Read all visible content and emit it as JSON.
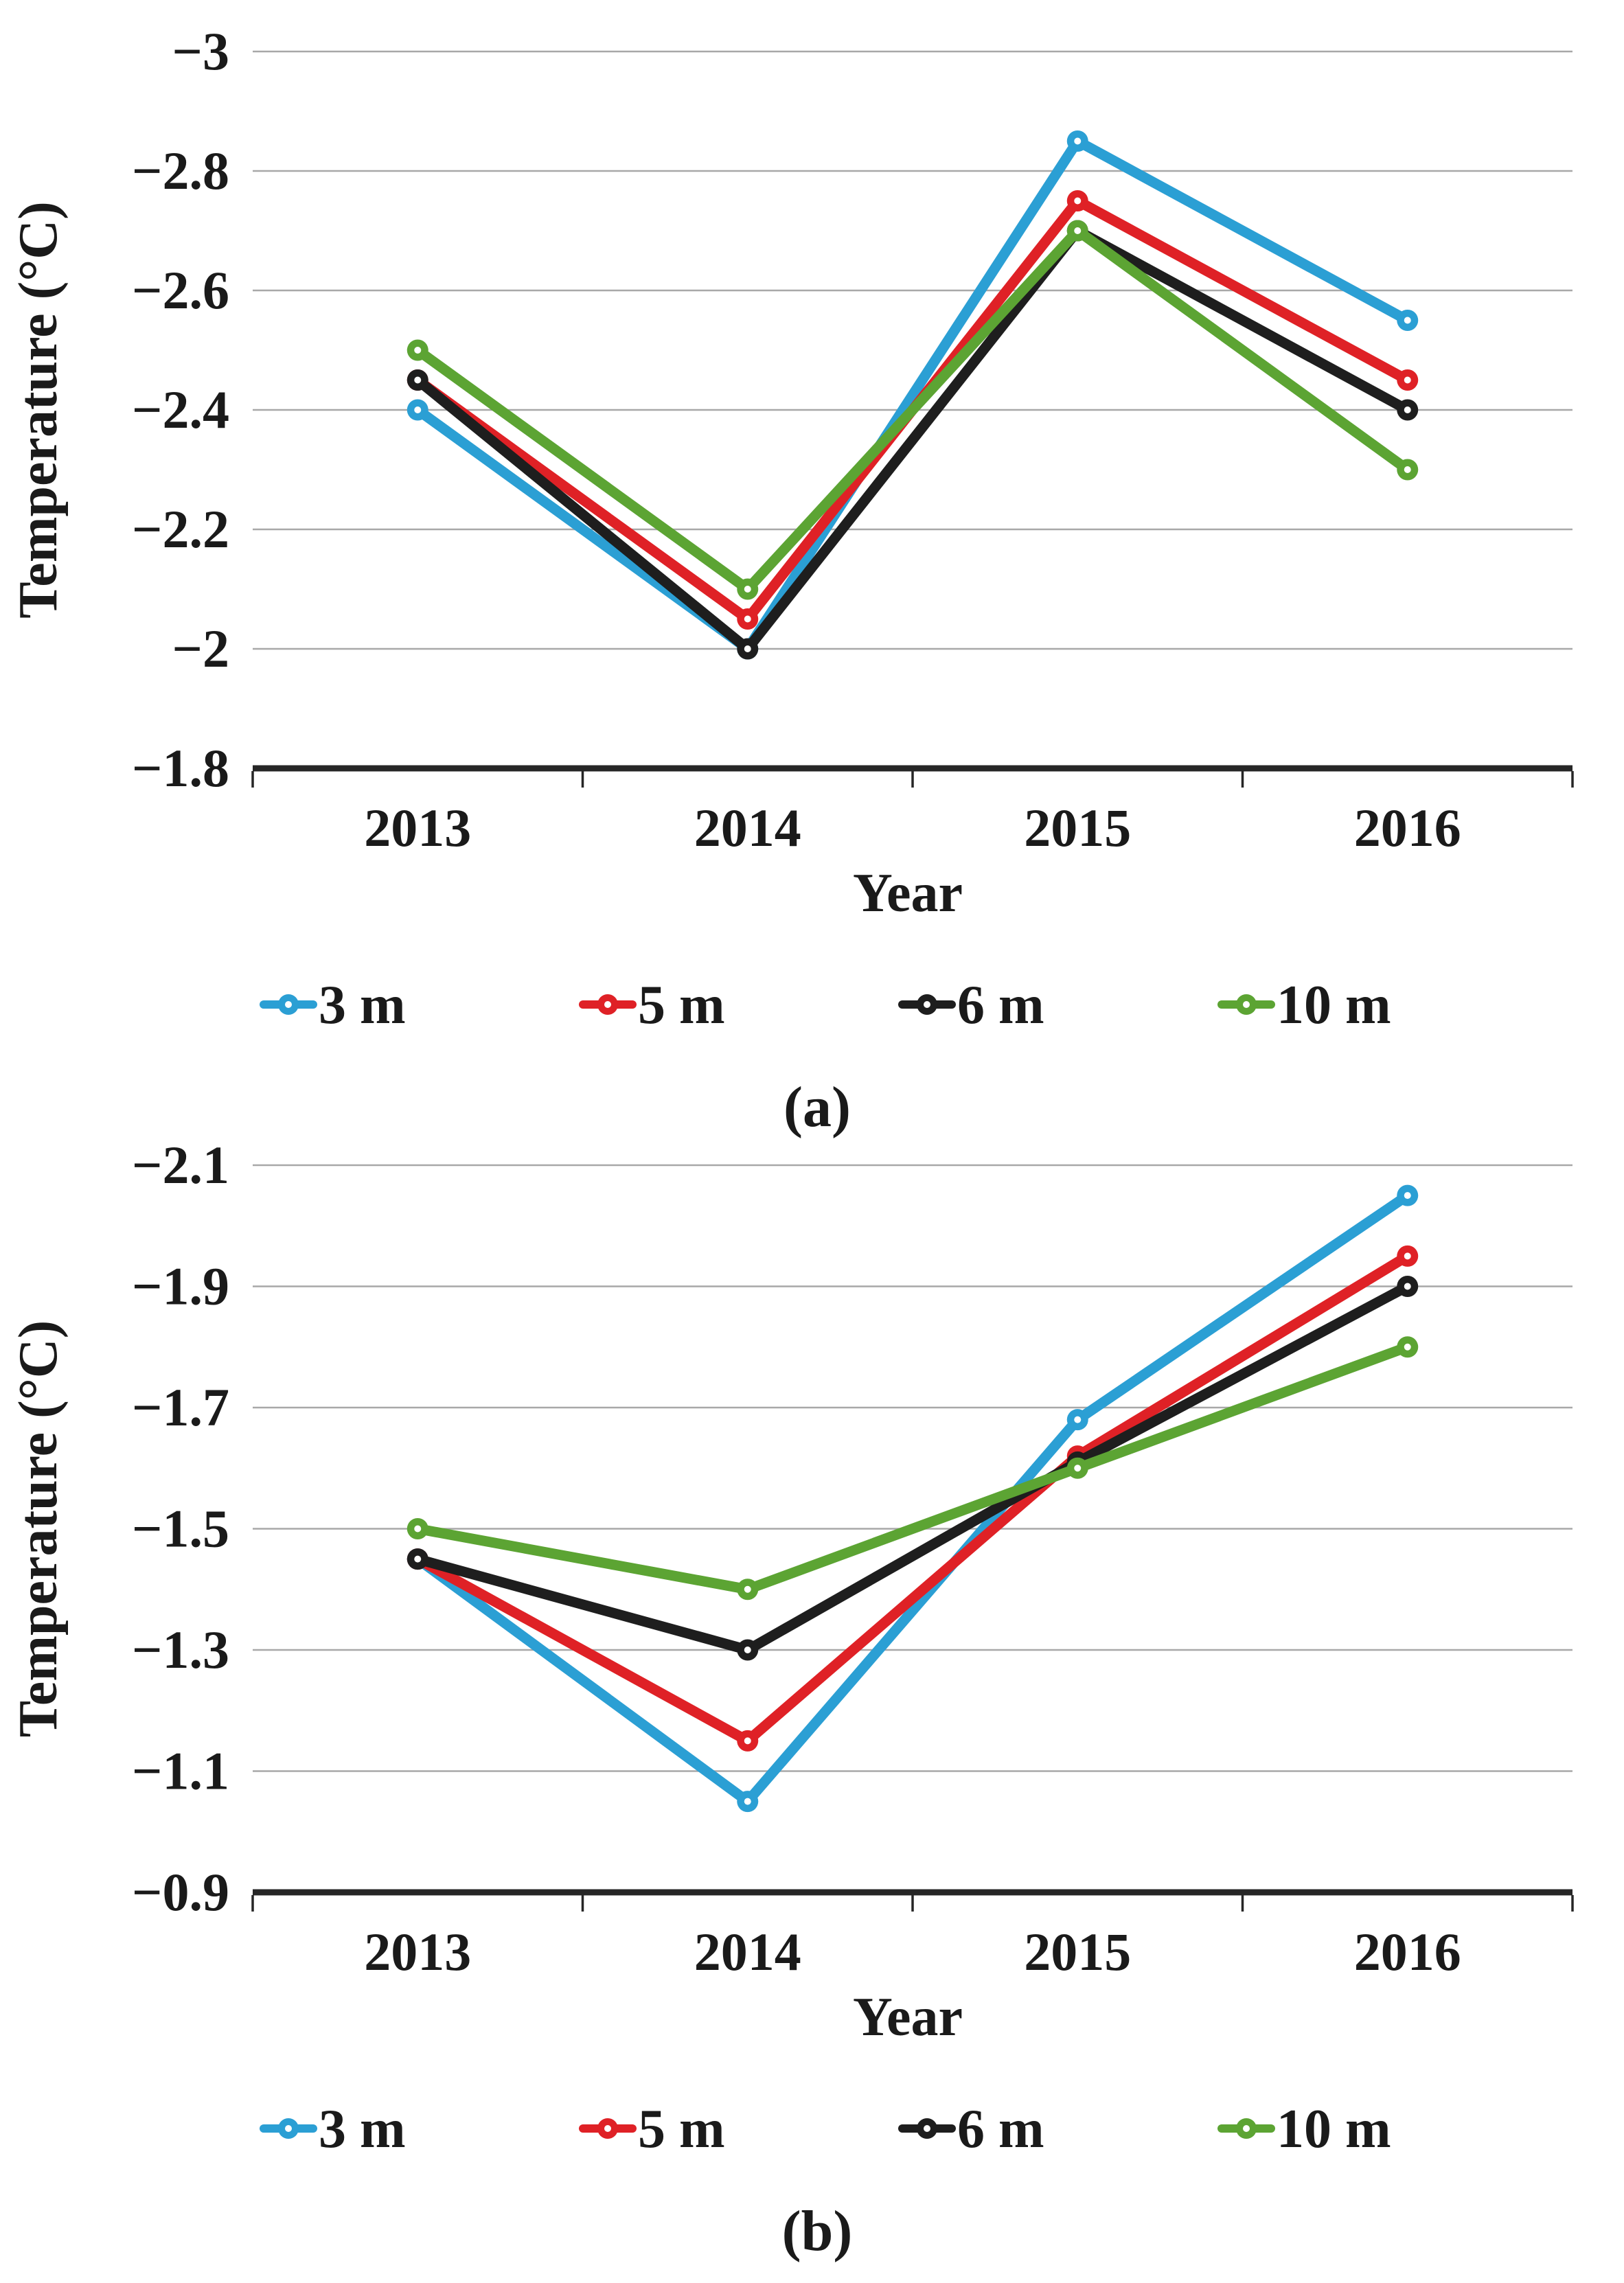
{
  "figure": {
    "background": "#ffffff",
    "panel_count": 2
  },
  "colors": {
    "series_3m": "#2b9fd4",
    "series_5m": "#df2126",
    "series_6m": "#1e1e1e",
    "series_10m": "#5ca433",
    "gridline": "#a8a8a8",
    "axis_line": "#262626",
    "text": "#1a1a1a"
  },
  "chart_data": [
    {
      "type": "line",
      "caption": "(a)",
      "xlabel": "Year",
      "ylabel": "Temperature (°C)",
      "categories": [
        "2013",
        "2014",
        "2015",
        "2016"
      ],
      "y_axis": {
        "tick_labels": [
          "−3",
          "−2.8",
          "−2.6",
          "−2.4",
          "−2.2",
          "−2",
          "−1.8"
        ],
        "top_value": -3.0,
        "bottom_value": -1.8,
        "step": 0.2,
        "inverted": true,
        "gridlines": true
      },
      "legend_position": "bottom",
      "series": [
        {
          "name": "3 m",
          "color": "#2b9fd4",
          "values": [
            -2.4,
            -2.0,
            -2.85,
            -2.55
          ]
        },
        {
          "name": "5 m",
          "color": "#df2126",
          "values": [
            -2.45,
            -2.05,
            -2.75,
            -2.45
          ]
        },
        {
          "name": "6 m",
          "color": "#1e1e1e",
          "values": [
            -2.45,
            -2.0,
            -2.7,
            -2.4
          ]
        },
        {
          "name": "10 m",
          "color": "#5ca433",
          "values": [
            -2.5,
            -2.1,
            -2.7,
            -2.3
          ]
        }
      ]
    },
    {
      "type": "line",
      "caption": "(b)",
      "xlabel": "Year",
      "ylabel": "Temperature (°C)",
      "categories": [
        "2013",
        "2014",
        "2015",
        "2016"
      ],
      "y_axis": {
        "tick_labels": [
          "−2.1",
          "−1.9",
          "−1.7",
          "−1.5",
          "−1.3",
          "−1.1",
          "−0.9"
        ],
        "top_value": -2.1,
        "bottom_value": -0.9,
        "step": 0.2,
        "inverted": true,
        "gridlines": true
      },
      "legend_position": "bottom",
      "series": [
        {
          "name": "3 m",
          "color": "#2b9fd4",
          "values": [
            -1.45,
            -1.05,
            -1.68,
            -2.05
          ]
        },
        {
          "name": "5 m",
          "color": "#df2126",
          "values": [
            -1.45,
            -1.15,
            -1.62,
            -1.95
          ]
        },
        {
          "name": "6 m",
          "color": "#1e1e1e",
          "values": [
            -1.45,
            -1.3,
            -1.61,
            -1.9
          ]
        },
        {
          "name": "10 m",
          "color": "#5ca433",
          "values": [
            -1.5,
            -1.4,
            -1.6,
            -1.8
          ]
        }
      ]
    }
  ]
}
